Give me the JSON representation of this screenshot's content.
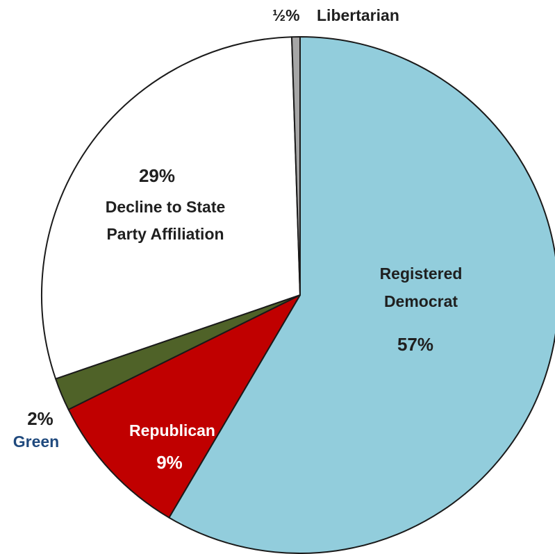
{
  "chart_data": {
    "type": "pie",
    "title": "",
    "start_angle_deg": 0,
    "direction": "clockwise",
    "slices": [
      {
        "name": "Registered Democrat",
        "value": 57,
        "color": "#92CDDC",
        "label_lines": [
          "Registered",
          "Democrat"
        ],
        "pct_label": "57%",
        "label_color": "#1f1f1f"
      },
      {
        "name": "Republican",
        "value": 9,
        "color": "#C00000",
        "label_lines": [
          "Republican"
        ],
        "pct_label": "9%",
        "label_color": "#ffffff"
      },
      {
        "name": "Green",
        "value": 2,
        "color": "#4F6228",
        "label_lines": [
          "Green"
        ],
        "pct_label": "2%",
        "label_color": "#1F497D"
      },
      {
        "name": "Decline to State Party Affiliation",
        "value": 29,
        "color": "#FFFFFF",
        "label_lines": [
          "Decline to State",
          "Party Affiliation"
        ],
        "pct_label": "29%",
        "label_color": "#1f1f1f"
      },
      {
        "name": "Libertarian",
        "value": 0.5,
        "color": "#A6A6A6",
        "label_lines": [
          "Libertarian"
        ],
        "pct_label": "½%",
        "label_color": "#1f1f1f"
      }
    ]
  }
}
